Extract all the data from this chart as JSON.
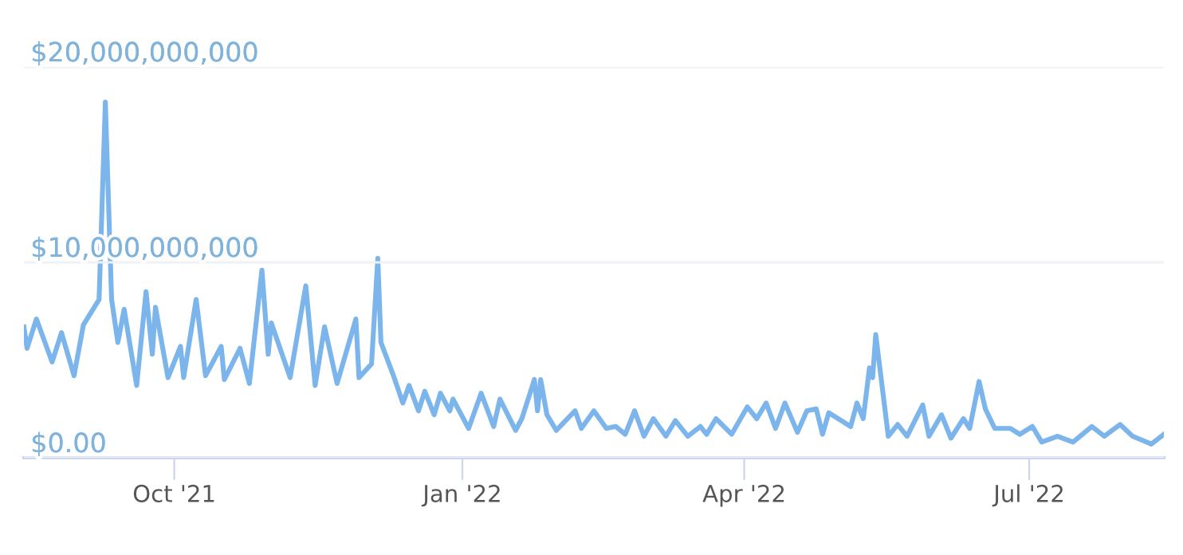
{
  "chart_data": {
    "type": "line",
    "x": [
      "2021-08-14",
      "2021-08-15",
      "2021-08-18",
      "2021-08-23",
      "2021-08-26",
      "2021-08-30",
      "2021-09-02",
      "2021-09-07",
      "2021-09-09",
      "2021-09-11",
      "2021-09-13",
      "2021-09-15",
      "2021-09-19",
      "2021-09-22",
      "2021-09-24",
      "2021-09-25",
      "2021-09-29",
      "2021-10-03",
      "2021-10-04",
      "2021-10-08",
      "2021-10-11",
      "2021-10-16",
      "2021-10-17",
      "2021-10-22",
      "2021-10-25",
      "2021-10-29",
      "2021-10-31",
      "2021-11-01",
      "2021-11-07",
      "2021-11-12",
      "2021-11-15",
      "2021-11-18",
      "2021-11-22",
      "2021-11-28",
      "2021-11-29",
      "2021-12-03",
      "2021-12-05",
      "2021-12-06",
      "2021-12-10",
      "2021-12-13",
      "2021-12-15",
      "2021-12-18",
      "2021-12-20",
      "2021-12-23",
      "2021-12-25",
      "2021-12-28",
      "2021-12-29",
      "2022-01-03",
      "2022-01-07",
      "2022-01-11",
      "2022-01-13",
      "2022-01-18",
      "2022-01-20",
      "2022-01-24",
      "2022-01-25",
      "2022-01-26",
      "2022-01-28",
      "2022-01-31",
      "2022-02-06",
      "2022-02-08",
      "2022-02-12",
      "2022-02-16",
      "2022-02-19",
      "2022-02-22",
      "2022-02-25",
      "2022-02-28",
      "2022-03-03",
      "2022-03-07",
      "2022-03-10",
      "2022-03-14",
      "2022-03-18",
      "2022-03-20",
      "2022-03-23",
      "2022-03-28",
      "2022-04-02",
      "2022-04-05",
      "2022-04-08",
      "2022-04-11",
      "2022-04-14",
      "2022-04-18",
      "2022-04-21",
      "2022-04-24",
      "2022-04-26",
      "2022-04-28",
      "2022-05-05",
      "2022-05-07",
      "2022-05-09",
      "2022-05-11",
      "2022-05-12",
      "2022-05-13",
      "2022-05-17",
      "2022-05-20",
      "2022-05-23",
      "2022-05-28",
      "2022-05-30",
      "2022-06-03",
      "2022-06-06",
      "2022-06-10",
      "2022-06-12",
      "2022-06-15",
      "2022-06-17",
      "2022-06-20",
      "2022-06-25",
      "2022-06-28",
      "2022-07-02",
      "2022-07-05",
      "2022-07-10",
      "2022-07-15",
      "2022-07-21",
      "2022-07-25",
      "2022-07-30",
      "2022-08-03",
      "2022-08-09",
      "2022-08-13"
    ],
    "series": [
      {
        "color": "#7cb5ec",
        "values": [
          6700000000,
          5600000000,
          7100000000,
          4900000000,
          6400000000,
          4200000000,
          6800000000,
          8100000000,
          18200000000,
          8100000000,
          5900000000,
          7600000000,
          3700000000,
          8500000000,
          5300000000,
          7700000000,
          4100000000,
          5700000000,
          4100000000,
          8100000000,
          4200000000,
          5700000000,
          4000000000,
          5600000000,
          3800000000,
          9600000000,
          5300000000,
          6900000000,
          4100000000,
          8800000000,
          3700000000,
          6700000000,
          3800000000,
          7100000000,
          4100000000,
          4800000000,
          10200000000,
          5900000000,
          4200000000,
          2800000000,
          3700000000,
          2400000000,
          3400000000,
          2200000000,
          3300000000,
          2400000000,
          3000000000,
          1500000000,
          3300000000,
          1600000000,
          3000000000,
          1400000000,
          2000000000,
          4000000000,
          2400000000,
          4000000000,
          2200000000,
          1400000000,
          2400000000,
          1500000000,
          2400000000,
          1500000000,
          1600000000,
          1200000000,
          2400000000,
          1100000000,
          2000000000,
          1100000000,
          1900000000,
          1100000000,
          1600000000,
          1200000000,
          2000000000,
          1200000000,
          2600000000,
          2000000000,
          2800000000,
          1500000000,
          2800000000,
          1300000000,
          2400000000,
          2500000000,
          1200000000,
          2300000000,
          1600000000,
          2800000000,
          2000000000,
          4600000000,
          4100000000,
          6300000000,
          1100000000,
          1700000000,
          1100000000,
          2700000000,
          1100000000,
          2200000000,
          1000000000,
          2000000000,
          1500000000,
          3900000000,
          2500000000,
          1500000000,
          1500000000,
          1200000000,
          1600000000,
          800000000,
          1100000000,
          800000000,
          1600000000,
          1100000000,
          1700000000,
          1100000000,
          700000000,
          1200000000
        ]
      }
    ],
    "xlim": [
      "2021-08-14",
      "2022-08-13"
    ],
    "xticks": [
      {
        "value": "2021-10-01",
        "label": "Oct '21"
      },
      {
        "value": "2022-01-01",
        "label": "Jan '22"
      },
      {
        "value": "2022-04-01",
        "label": "Apr '22"
      },
      {
        "value": "2022-07-01",
        "label": "Jul '22"
      }
    ],
    "ylim": [
      0,
      20000000000
    ],
    "yticks": [
      {
        "value": 0,
        "label": "$0.00"
      },
      {
        "value": 10000000000,
        "label": "$10,000,000,000"
      },
      {
        "value": 20000000000,
        "label": "$20,000,000,000"
      }
    ],
    "grid": "y",
    "legend": false,
    "marker": "none",
    "line_style": "solid"
  }
}
